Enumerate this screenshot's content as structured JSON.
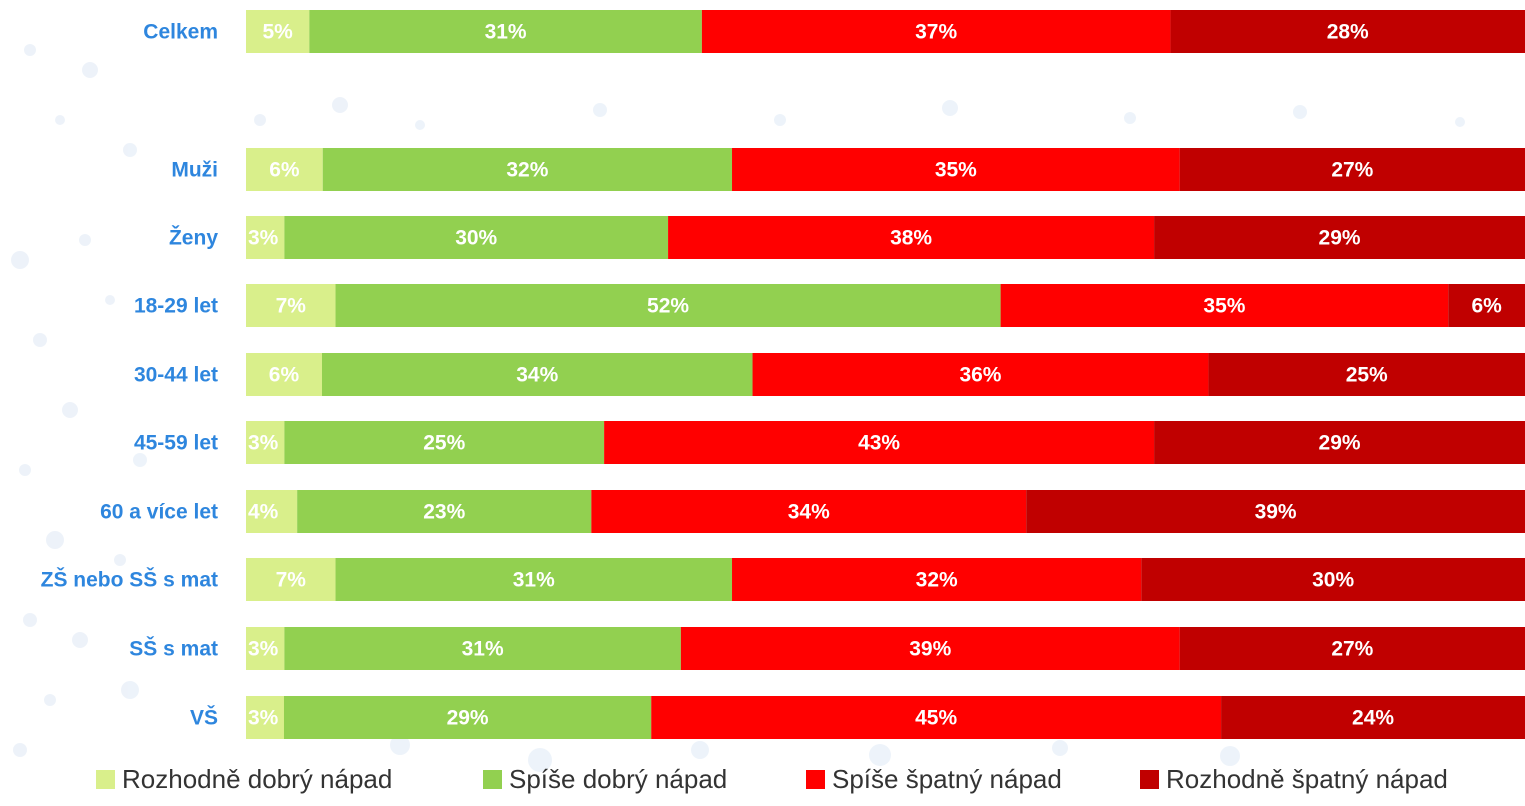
{
  "chart_data": {
    "type": "bar",
    "orientation": "horizontal",
    "stacked": true,
    "categories": [
      "Celkem",
      "Muži",
      "Ženy",
      "18-29 let",
      "30-44 let",
      "45-59 let",
      "60 a více let",
      "ZŠ nebo SŠ s mat",
      "SŠ s mat",
      "VŠ"
    ],
    "series": [
      {
        "name": "Rozhodně dobrý nápad",
        "color": "#d9ef8b",
        "values": [
          5,
          6,
          3,
          7,
          6,
          3,
          4,
          7,
          3,
          3
        ]
      },
      {
        "name": "Spíše dobrý nápad",
        "color": "#92d050",
        "values": [
          31,
          32,
          30,
          52,
          34,
          25,
          23,
          31,
          31,
          29
        ]
      },
      {
        "name": "Spíše špatný nápad",
        "color": "#ff0000",
        "values": [
          37,
          35,
          38,
          35,
          36,
          43,
          34,
          32,
          39,
          45
        ]
      },
      {
        "name": "Rozhodně špatný nápad",
        "color": "#c00000",
        "values": [
          28,
          27,
          29,
          6,
          25,
          29,
          39,
          30,
          27,
          24
        ]
      }
    ],
    "value_suffix": "%",
    "category_color": "#2e86de",
    "legend_position": "bottom"
  }
}
